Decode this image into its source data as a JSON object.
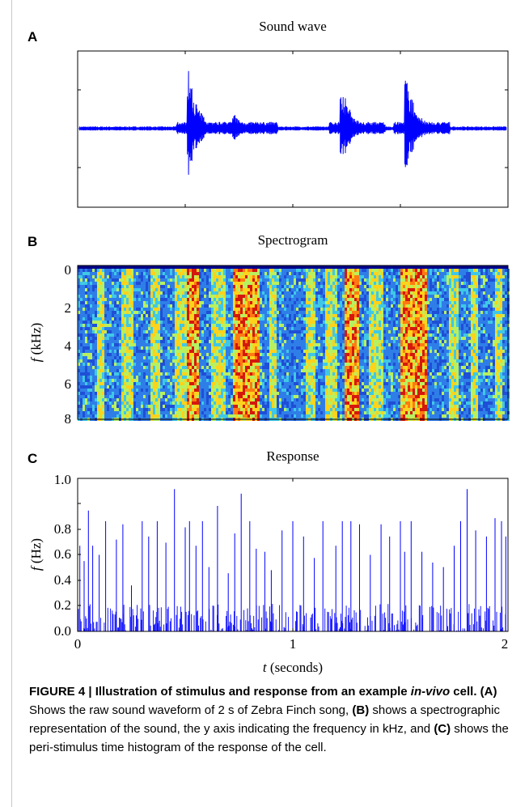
{
  "panels": {
    "a": {
      "letter": "A",
      "title": "Sound wave"
    },
    "b": {
      "letter": "B",
      "title": "Spectrogram",
      "ylabel_italic": "f",
      "ylabel_rest": " (kHz)",
      "yticks": [
        "0",
        "2",
        "4",
        "6",
        "8"
      ]
    },
    "c": {
      "letter": "C",
      "title": "Response",
      "ylabel_italic": "f",
      "ylabel_rest": " (Hz)",
      "yticks": [
        "0.0",
        "0.2",
        "0.4",
        "0.6",
        "0.8",
        "1.0"
      ],
      "xticks": [
        "0",
        "1",
        "2"
      ],
      "xlabel_italic": "t",
      "xlabel_rest": " (seconds)"
    }
  },
  "caption": {
    "figure_label": "FIGURE 4 | Illustration of stimulus and response from an example",
    "italic_term": "in-vivo",
    "title_end": " cell.",
    "a_ref": "(A)",
    "a_text": " Shows the raw sound waveform of 2 s of Zebra Finch song,",
    "b_ref": "(B)",
    "b_text": " shows a spectrographic representation of the sound, the y axis indicating the frequency in kHz, and",
    "c_ref": "(C)",
    "c_text": " shows the peri-stimulus time histogram of the response of the cell."
  },
  "chart_data": [
    {
      "type": "line",
      "title": "Sound wave",
      "xlabel": "",
      "ylabel": "",
      "xlim": [
        0,
        2
      ],
      "syllable_onsets_s": [
        0.52,
        0.73,
        1.23,
        1.53
      ],
      "syllable_peak_amplitude": [
        0.95,
        0.25,
        0.75,
        0.9
      ],
      "line_color": "#0000ff"
    },
    {
      "type": "heatmap",
      "title": "Spectrogram",
      "xlabel": "",
      "ylabel": "f (kHz)",
      "ylim": [
        8,
        0
      ],
      "xlim": [
        0,
        2
      ],
      "colormap": "jet"
    },
    {
      "type": "bar",
      "title": "Response",
      "xlabel": "t (seconds)",
      "ylabel": "f (Hz)",
      "xlim": [
        0,
        2
      ],
      "ylim": [
        0,
        1.0
      ],
      "x": [
        0.01,
        0.03,
        0.05,
        0.07,
        0.1,
        0.13,
        0.18,
        0.21,
        0.25,
        0.3,
        0.33,
        0.37,
        0.41,
        0.45,
        0.5,
        0.52,
        0.55,
        0.58,
        0.61,
        0.65,
        0.7,
        0.73,
        0.76,
        0.8,
        0.83,
        0.87,
        0.9,
        0.95,
        1.0,
        1.05,
        1.1,
        1.14,
        1.2,
        1.23,
        1.27,
        1.31,
        1.36,
        1.41,
        1.45,
        1.5,
        1.52,
        1.55,
        1.6,
        1.65,
        1.7,
        1.75,
        1.78,
        1.81,
        1.85,
        1.9,
        1.94,
        1.97,
        1.99
      ],
      "values": [
        0.56,
        0.46,
        0.79,
        0.56,
        0.5,
        0.72,
        0.6,
        0.7,
        0.3,
        0.72,
        0.62,
        0.72,
        0.58,
        0.93,
        0.68,
        0.72,
        0.56,
        0.72,
        0.42,
        0.82,
        0.38,
        0.64,
        0.9,
        0.72,
        0.54,
        0.52,
        0.4,
        0.66,
        0.72,
        0.62,
        0.48,
        0.72,
        0.56,
        0.72,
        0.72,
        0.7,
        0.5,
        0.7,
        0.62,
        0.72,
        0.52,
        0.72,
        0.52,
        0.45,
        0.42,
        0.56,
        0.72,
        0.93,
        0.66,
        0.62,
        0.74,
        0.72,
        0.62
      ],
      "bar_color": "#0000ff"
    }
  ]
}
